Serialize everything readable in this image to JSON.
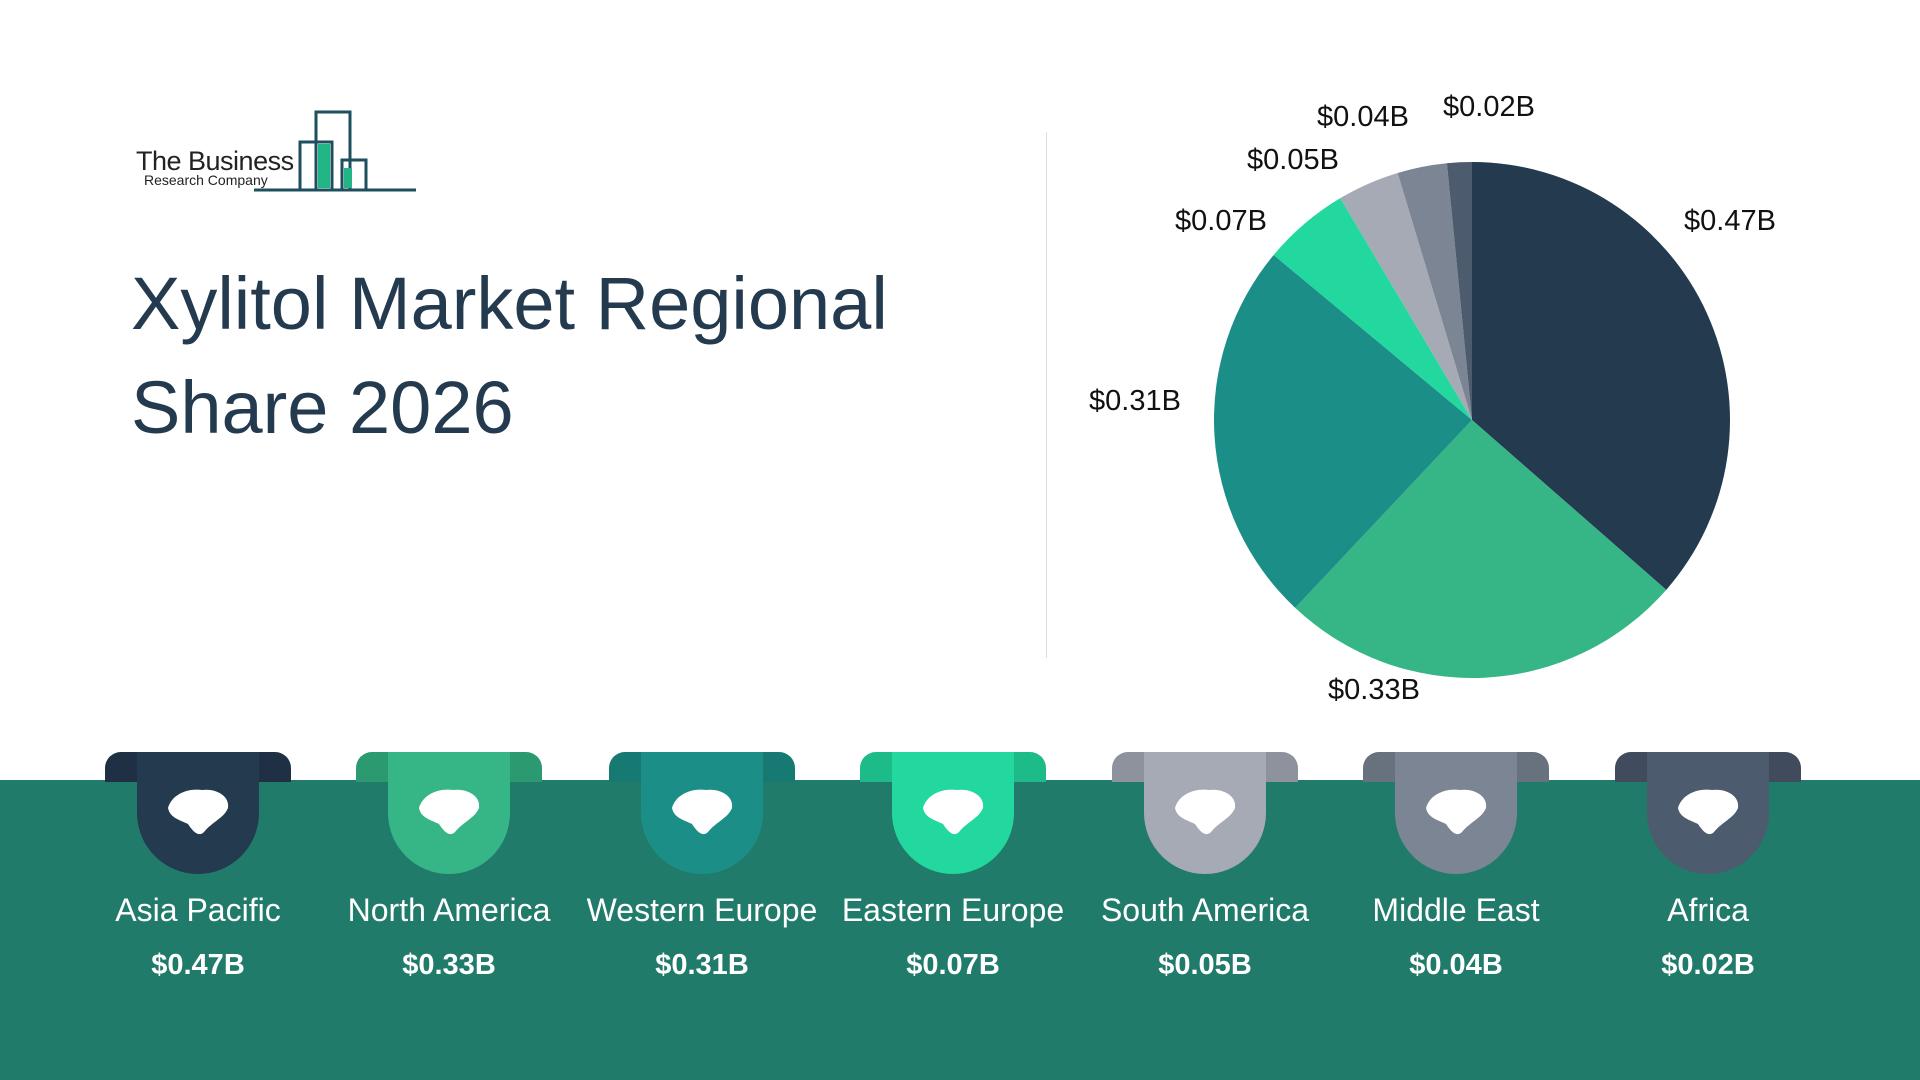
{
  "logo": {
    "line1": "The Business",
    "line2": "Research Company"
  },
  "title": "Xylitol Market Regional Share 2026",
  "chart_data": {
    "type": "pie",
    "title": "Xylitol Market Regional Share 2026",
    "unit": "$B",
    "start": "12 o'clock, clockwise",
    "slices": [
      {
        "name": "Asia Pacific",
        "value": 0.47,
        "label": "$0.47B",
        "color": "#243a4f",
        "ear": "#1f3044"
      },
      {
        "name": "North America",
        "value": 0.33,
        "label": "$0.33B",
        "color": "#36b686",
        "ear": "#2c9a70"
      },
      {
        "name": "Western Europe",
        "value": 0.31,
        "label": "$0.31B",
        "color": "#1b8f87",
        "ear": "#167a72"
      },
      {
        "name": "Eastern Europe",
        "value": 0.07,
        "label": "$0.07B",
        "color": "#22d89e",
        "ear": "#1dbb88"
      },
      {
        "name": "South America",
        "value": 0.05,
        "label": "$0.05B",
        "color": "#a5aab5",
        "ear": "#8d929c"
      },
      {
        "name": "Middle East",
        "value": 0.04,
        "label": "$0.04B",
        "color": "#7b8593",
        "ear": "#68717e"
      },
      {
        "name": "Africa",
        "value": 0.02,
        "label": "$0.02B",
        "color": "#4d5b6e",
        "ear": "#404c5d"
      }
    ]
  }
}
